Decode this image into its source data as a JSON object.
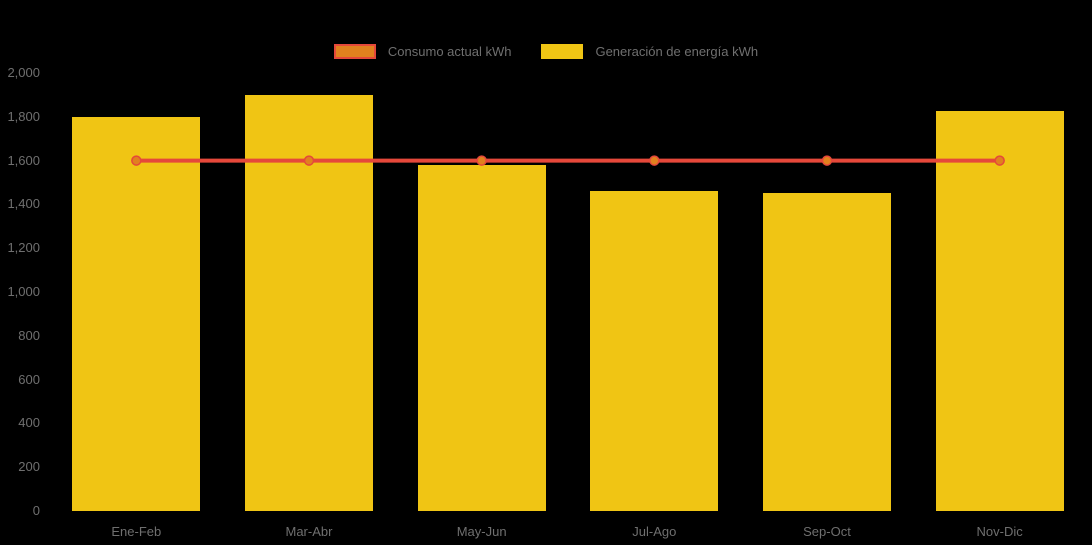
{
  "background_color": "#000000",
  "text_color": "#6F6F6F",
  "legend": {
    "items": [
      {
        "label": "Consumo actual kWh",
        "swatch_fill": "#E1811E",
        "swatch_border": "#E5483A"
      },
      {
        "label": "Generación de energía kWh",
        "swatch_fill": "#F0C514",
        "swatch_border": "#F0C514"
      }
    ]
  },
  "chart_data": {
    "type": "bar",
    "categories": [
      "Ene-Feb",
      "Mar-Abr",
      "May-Jun",
      "Jul-Ago",
      "Sep-Oct",
      "Nov-Dic"
    ],
    "series": [
      {
        "name": "Generación de energía kWh",
        "type": "bar",
        "color": "#F0C514",
        "values": [
          1800,
          1900,
          1580,
          1460,
          1450,
          1825
        ]
      },
      {
        "name": "Consumo actual kWh",
        "type": "line",
        "color": "#E5483A",
        "marker_fill": "#E1811E",
        "values": [
          1600,
          1600,
          1600,
          1600,
          1600,
          1600
        ]
      }
    ],
    "ylim": [
      0,
      2000
    ],
    "ytick_step": 200,
    "ytick_labels": [
      "0",
      "200",
      "400",
      "600",
      "800",
      "1,000",
      "1,200",
      "1,400",
      "1,600",
      "1,800",
      "2,000"
    ],
    "grid": false,
    "legend_position": "top"
  }
}
